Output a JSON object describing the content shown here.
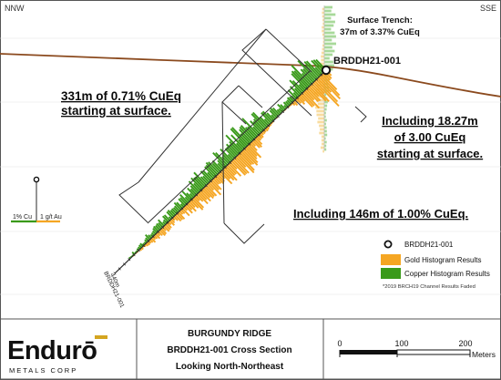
{
  "orientation": {
    "left": "NNW",
    "right": "SSE"
  },
  "trench_label": {
    "line1": "Surface Trench:",
    "line2": "37m of 3.37% CuEq"
  },
  "collar_label": "BRDDH21-001",
  "annotations": {
    "main_line1": "331m of 0.71% CuEq",
    "main_line2": "starting at surface.",
    "incl1_line1": "Including 18.27m",
    "incl1_line2": "of 3.00 CuEq",
    "incl1_line3": "starting at surface.",
    "incl2": "Including 146m of 1.00% CuEq."
  },
  "scale_key": {
    "cu": "1% Cu",
    "au": "1 g/t Au"
  },
  "hole_end_labels": {
    "depth": "440m",
    "hole": "BRDDH21-001"
  },
  "legend": {
    "collar": "BRDDH21-001",
    "gold": "Gold Histogram Results",
    "copper": "Copper Histogram Results",
    "note": "*2019 BRCH19 Channel Results Faded"
  },
  "footer": {
    "logo_main": "Endurō",
    "logo_sub": "METALS CORP",
    "title_line1": "BURGUNDY RIDGE",
    "title_line2": "BRDDH21-001 Cross Section",
    "title_line3": "Looking North-Northeast",
    "scale_ticks": [
      "0",
      "100",
      "200"
    ],
    "scale_unit": "Meters"
  },
  "colors": {
    "gold": "#f5a623",
    "copper": "#3a9a1a",
    "copper_faded": "#a8d99a",
    "gold_faded": "#f8dca0",
    "topography": "#8b4a1e",
    "drillhole": "#2a2a2a"
  }
}
